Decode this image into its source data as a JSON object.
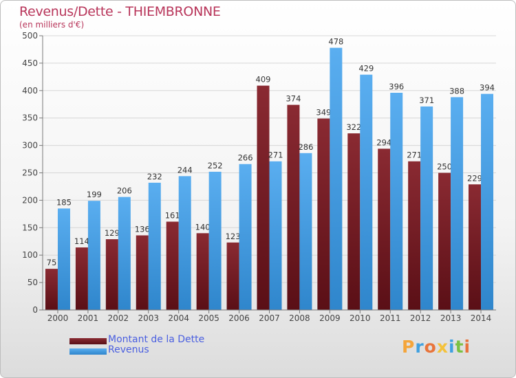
{
  "chart_data": {
    "type": "bar",
    "title": "Revenus/Dette - THIEMBRONNE",
    "subtitle": "(en milliers d'€)",
    "categories": [
      "2000",
      "2001",
      "2002",
      "2003",
      "2004",
      "2005",
      "2006",
      "2007",
      "2008",
      "2009",
      "2010",
      "2011",
      "2012",
      "2013",
      "2014"
    ],
    "series": [
      {
        "name": "Montant de la Dette",
        "color": "#7a1f26",
        "values": [
          75,
          114,
          129,
          136,
          161,
          140,
          123,
          409,
          374,
          349,
          322,
          294,
          271,
          250,
          229
        ]
      },
      {
        "name": "Revenus",
        "color": "#4da3e6",
        "values": [
          185,
          199,
          206,
          232,
          244,
          252,
          266,
          271,
          286,
          478,
          429,
          396,
          371,
          388,
          394
        ]
      }
    ],
    "ylim": [
      0,
      500
    ],
    "yticks": [
      0,
      50,
      100,
      150,
      200,
      250,
      300,
      350,
      400,
      450,
      500
    ],
    "grid": true,
    "xlabel": "",
    "ylabel": "",
    "legend_position": "bottom-left"
  },
  "logo": {
    "letters": [
      "P",
      "r",
      "o",
      "x",
      "i",
      "t",
      "i"
    ],
    "colors": [
      "#f4a53b",
      "#3fa0e0",
      "#e8743b",
      "#f4c23b",
      "#3fa0e0",
      "#7ac142",
      "#e8743b"
    ]
  }
}
